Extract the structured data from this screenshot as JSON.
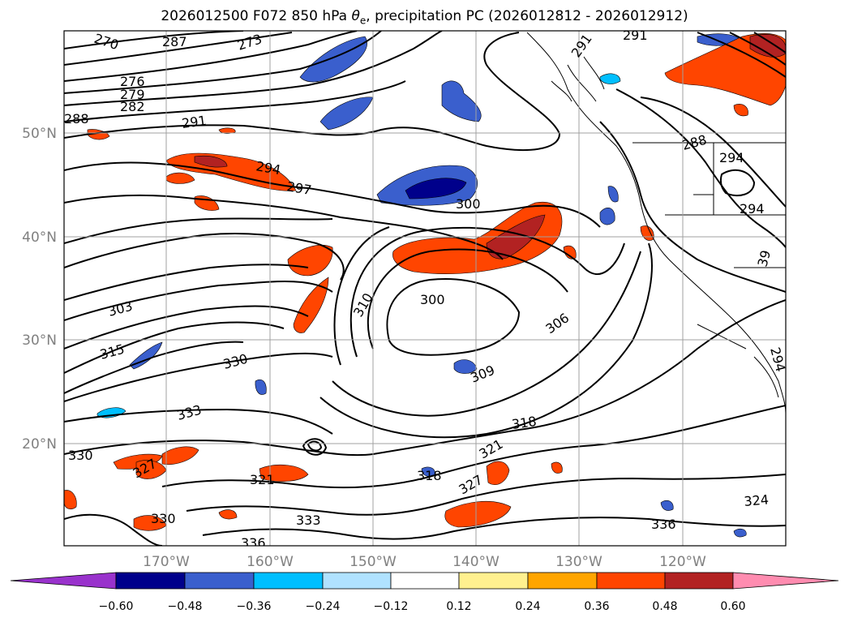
{
  "title": "2026012500 F072 850 hPa θe, precipitation PC (2026012812 - 2026012912)",
  "title_parts": {
    "prefix": "2026012500 F072 850 hPa ",
    "theta": "θ",
    "sub": "e",
    "suffix": ", precipitation PC (2026012812 - 2026012912)"
  },
  "map": {
    "lat_labels": [
      "50°N",
      "40°N",
      "30°N",
      "20°N"
    ],
    "lon_labels": [
      "170°W",
      "160°W",
      "150°W",
      "140°W",
      "130°W",
      "120°W"
    ],
    "contour_labels": [
      "270",
      "287",
      "273",
      "276",
      "279",
      "282",
      "288",
      "291",
      "294",
      "297",
      "300",
      "303",
      "315",
      "310",
      "300",
      "306",
      "309",
      "330",
      "333",
      "318",
      "321",
      "330",
      "327",
      "321",
      "318",
      "327",
      "330",
      "333",
      "336",
      "324",
      "336",
      "291",
      "291",
      "294",
      "294",
      "288",
      "294",
      "39"
    ],
    "contour_color": "#000000",
    "grid_color": "#a0a0a0"
  },
  "colorbar": {
    "ticks": [
      "−0.60",
      "−0.48",
      "−0.36",
      "−0.24",
      "−0.12",
      "0.12",
      "0.24",
      "0.36",
      "0.48",
      "0.60"
    ],
    "colors": [
      "#9932cc",
      "#00008b",
      "#3a5fcd",
      "#00bfff",
      "#b0e2ff",
      "#ffffff",
      "#fff08f",
      "#ffa500",
      "#ff4500",
      "#b22222",
      "#ff8cb0"
    ]
  }
}
